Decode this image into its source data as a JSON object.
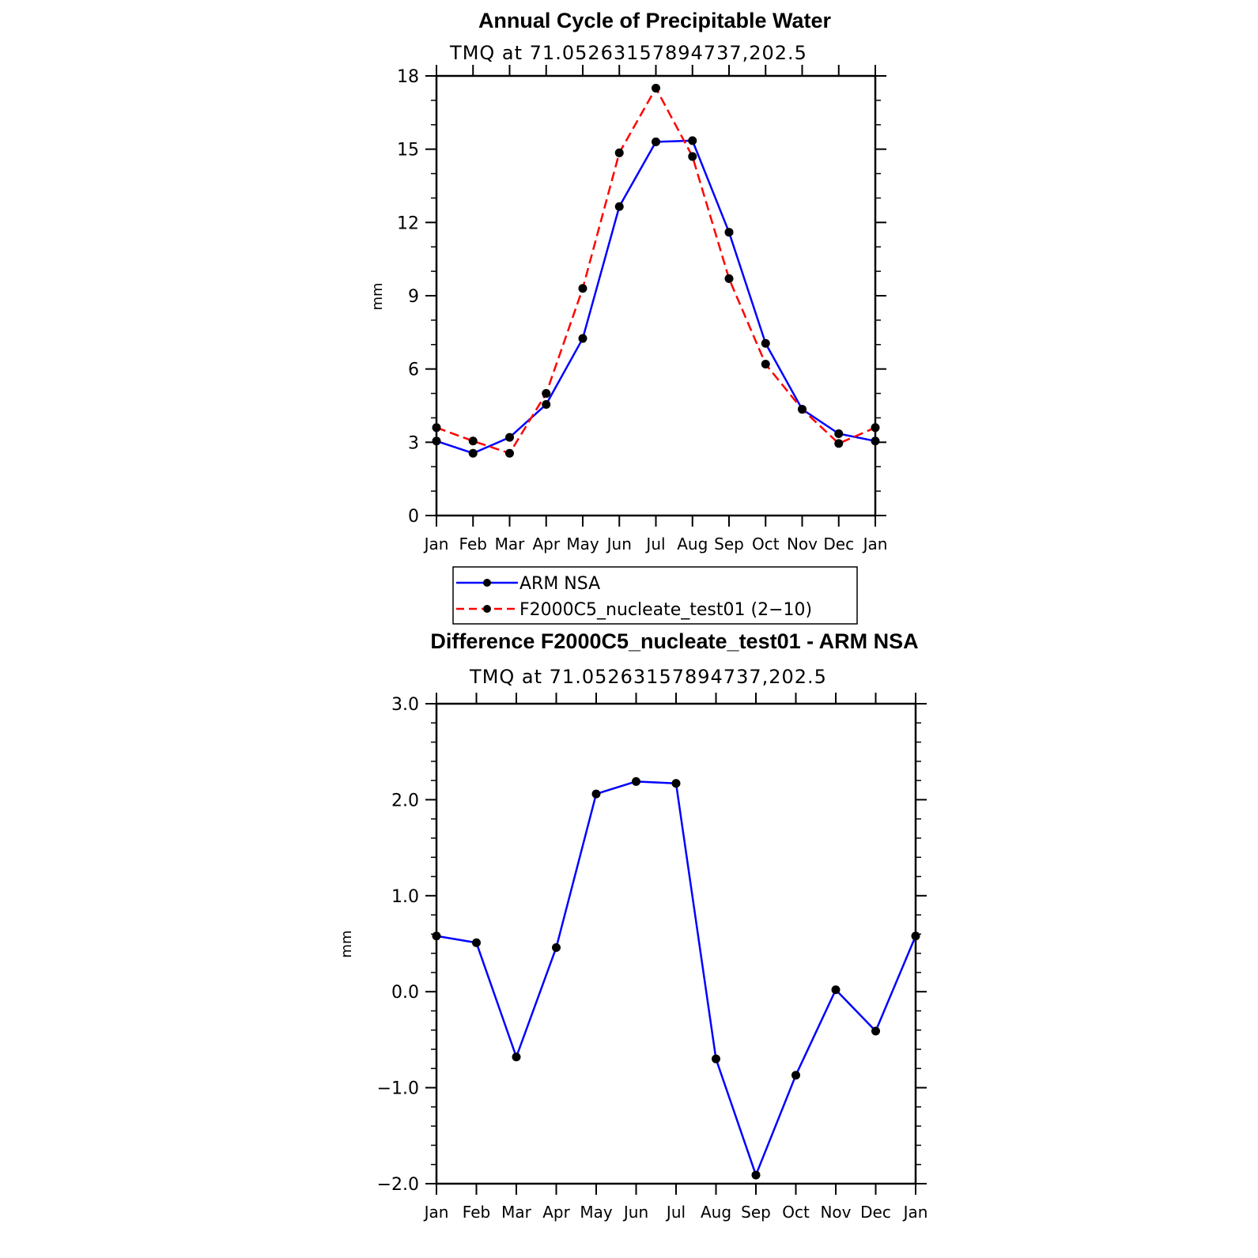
{
  "chart_data": [
    {
      "type": "line",
      "title": "Annual Cycle of Precipitable Water",
      "subtitle": "TMQ at 71.05263157894737,202.5",
      "ylabel": "mm",
      "categories": [
        "Jan",
        "Feb",
        "Mar",
        "Apr",
        "May",
        "Jun",
        "Jul",
        "Aug",
        "Sep",
        "Oct",
        "Nov",
        "Dec",
        "Jan"
      ],
      "ylim": [
        0,
        18
      ],
      "yticks": [
        "0",
        "3",
        "6",
        "9",
        "12",
        "15",
        "18"
      ],
      "series": [
        {
          "name": "ARM NSA",
          "color": "#0000ff",
          "dash": "solid",
          "values": [
            3.05,
            2.55,
            3.2,
            4.55,
            7.25,
            12.65,
            15.3,
            15.35,
            11.6,
            7.05,
            4.35,
            3.35,
            3.05
          ]
        },
        {
          "name": "F2000C5_nucleate_test01 (2−10)",
          "color": "#ff0000",
          "dash": "dashed",
          "values": [
            3.6,
            3.05,
            2.55,
            5.0,
            9.3,
            14.85,
            17.5,
            14.7,
            9.7,
            6.2,
            4.35,
            2.95,
            3.6
          ]
        }
      ],
      "legend": "below"
    },
    {
      "type": "line",
      "title": "Difference F2000C5_nucleate_test01 - ARM NSA",
      "subtitle": "TMQ at 71.05263157894737,202.5",
      "ylabel": "mm",
      "categories": [
        "Jan",
        "Feb",
        "Mar",
        "Apr",
        "May",
        "Jun",
        "Jul",
        "Aug",
        "Sep",
        "Oct",
        "Nov",
        "Dec",
        "Jan"
      ],
      "ylim": [
        -2.0,
        3.0
      ],
      "yticks": [
        "−2.0",
        "−1.0",
        "0.0",
        "1.0",
        "2.0",
        "3.0"
      ],
      "series": [
        {
          "color": "#0000ff",
          "dash": "solid",
          "values": [
            0.58,
            0.51,
            -0.68,
            0.46,
            2.06,
            2.19,
            2.17,
            -0.7,
            -1.91,
            -0.87,
            0.02,
            -0.41,
            0.58
          ]
        }
      ]
    }
  ]
}
